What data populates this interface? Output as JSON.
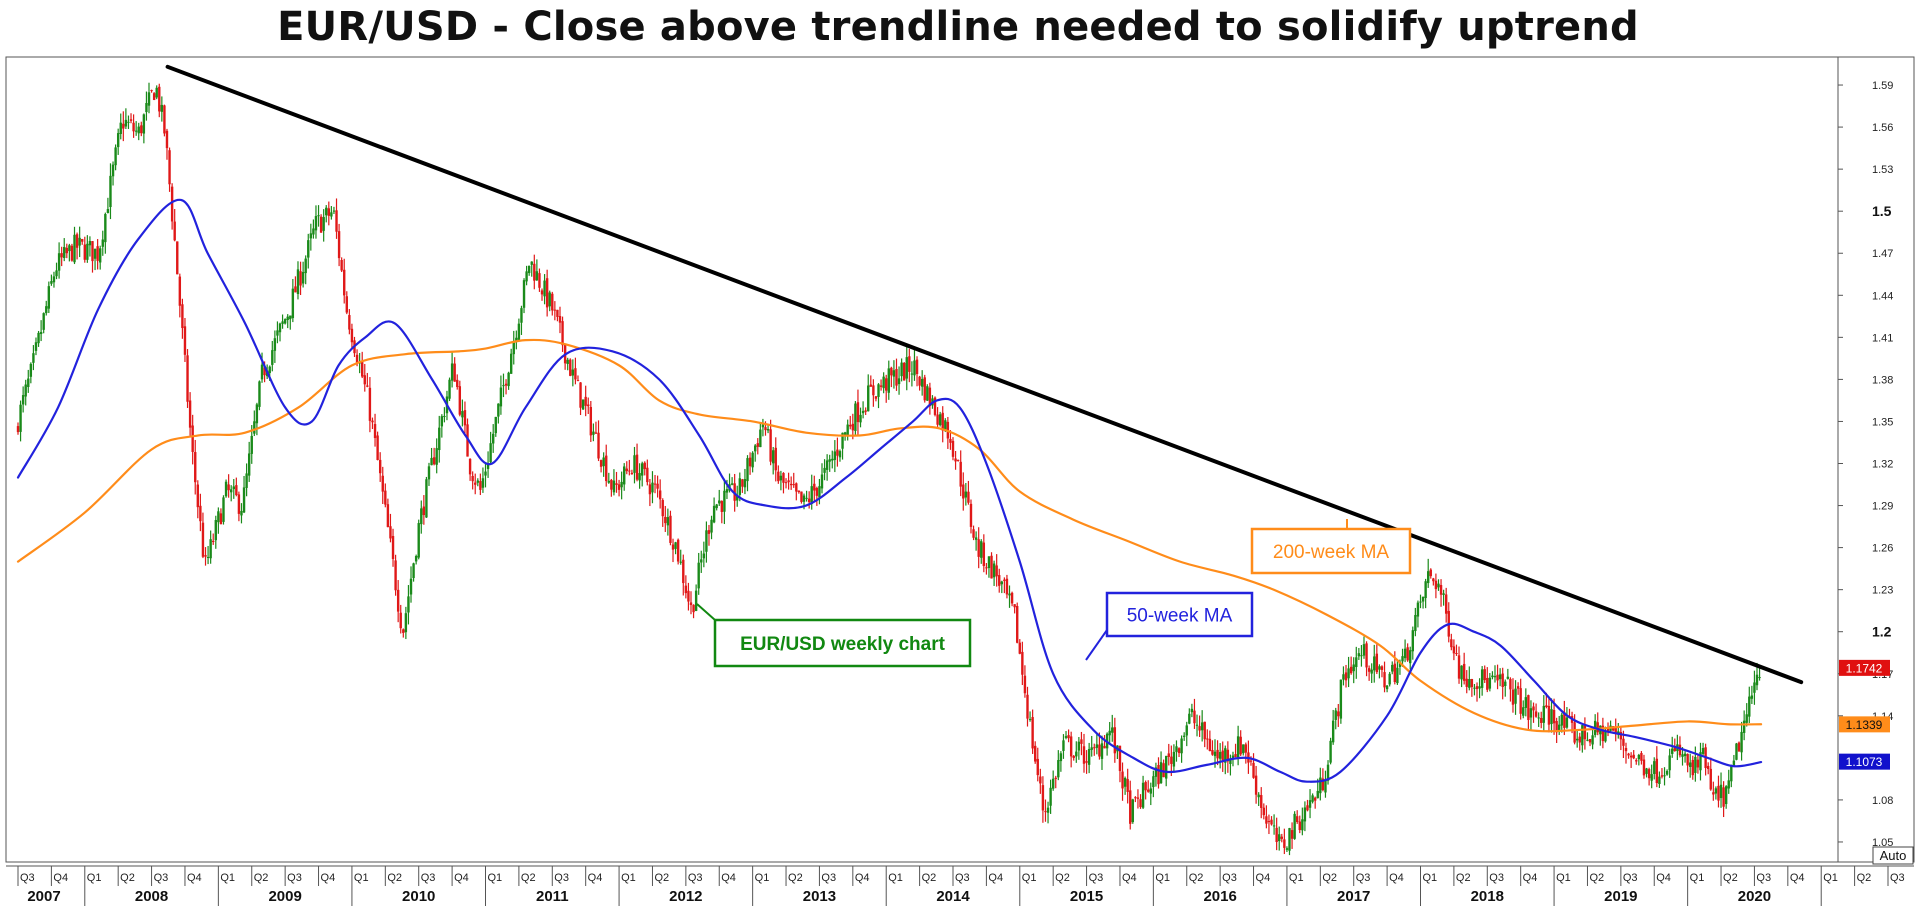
{
  "title": "EUR/USD - Close above trendline needed to solidify uptrend",
  "auto_label": "Auto",
  "chart_data": {
    "type": "candlestick",
    "title": "EUR/USD - Close above trendline needed to solidify uptrend",
    "grid": false,
    "y_axis": {
      "position": "right",
      "ylim": [
        1.03,
        1.61
      ],
      "minor_ticks": [
        "1.59",
        "1.56",
        "1.53",
        "1.47",
        "1.44",
        "1.41",
        "1.38",
        "1.35",
        "1.32",
        "1.29",
        "1.26",
        "1.23",
        "1.17",
        "1.14",
        "1.08",
        "1.05"
      ],
      "major_ticks": [
        "1.5",
        "1.2"
      ]
    },
    "x_axis": {
      "start": 2007.5,
      "end": 2021.5,
      "years": [
        "2007",
        "2008",
        "2009",
        "2010",
        "2011",
        "2012",
        "2013",
        "2014",
        "2015",
        "2016",
        "2017",
        "2018",
        "2019",
        "2020"
      ],
      "quarters": [
        "Q3",
        "Q4",
        "Q1",
        "Q2",
        "Q3",
        "Q4",
        "Q1",
        "Q2",
        "Q3",
        "Q4",
        "Q1",
        "Q2",
        "Q3",
        "Q4",
        "Q1",
        "Q2",
        "Q3",
        "Q4",
        "Q1",
        "Q2",
        "Q3",
        "Q4",
        "Q1",
        "Q2",
        "Q3",
        "Q4",
        "Q1",
        "Q2",
        "Q3",
        "Q4",
        "Q1",
        "Q2",
        "Q3",
        "Q4",
        "Q1",
        "Q2",
        "Q3",
        "Q4",
        "Q1",
        "Q2",
        "Q3",
        "Q4",
        "Q1",
        "Q2",
        "Q3",
        "Q4",
        "Q1",
        "Q2",
        "Q3",
        "Q4",
        "Q1",
        "Q2",
        "Q3",
        "Q4",
        "Q1",
        "Q2",
        "Q3",
        "Q4"
      ]
    },
    "price_keypoints": [
      [
        2007.5,
        1.345
      ],
      [
        2007.62,
        1.385
      ],
      [
        2007.8,
        1.46
      ],
      [
        2007.95,
        1.475
      ],
      [
        2008.12,
        1.47
      ],
      [
        2008.3,
        1.565
      ],
      [
        2008.42,
        1.555
      ],
      [
        2008.55,
        1.59
      ],
      [
        2008.62,
        1.555
      ],
      [
        2008.7,
        1.47
      ],
      [
        2008.82,
        1.33
      ],
      [
        2008.92,
        1.245
      ],
      [
        2009.08,
        1.3
      ],
      [
        2009.2,
        1.29
      ],
      [
        2009.35,
        1.385
      ],
      [
        2009.55,
        1.43
      ],
      [
        2009.75,
        1.49
      ],
      [
        2009.88,
        1.5
      ],
      [
        2009.98,
        1.43
      ],
      [
        2010.15,
        1.36
      ],
      [
        2010.3,
        1.265
      ],
      [
        2010.4,
        1.2
      ],
      [
        2010.52,
        1.275
      ],
      [
        2010.62,
        1.32
      ],
      [
        2010.78,
        1.39
      ],
      [
        2010.9,
        1.32
      ],
      [
        2010.98,
        1.3
      ],
      [
        2011.12,
        1.36
      ],
      [
        2011.3,
        1.44
      ],
      [
        2011.35,
        1.465
      ],
      [
        2011.52,
        1.43
      ],
      [
        2011.68,
        1.38
      ],
      [
        2011.8,
        1.35
      ],
      [
        2011.98,
        1.3
      ],
      [
        2012.12,
        1.32
      ],
      [
        2012.3,
        1.3
      ],
      [
        2012.45,
        1.26
      ],
      [
        2012.56,
        1.215
      ],
      [
        2012.72,
        1.29
      ],
      [
        2012.92,
        1.3
      ],
      [
        2013.1,
        1.35
      ],
      [
        2013.2,
        1.31
      ],
      [
        2013.4,
        1.29
      ],
      [
        2013.55,
        1.31
      ],
      [
        2013.75,
        1.35
      ],
      [
        2013.9,
        1.37
      ],
      [
        2014.05,
        1.38
      ],
      [
        2014.22,
        1.39
      ],
      [
        2014.35,
        1.365
      ],
      [
        2014.5,
        1.34
      ],
      [
        2014.7,
        1.26
      ],
      [
        2014.85,
        1.24
      ],
      [
        2014.98,
        1.21
      ],
      [
        2015.1,
        1.13
      ],
      [
        2015.2,
        1.07
      ],
      [
        2015.35,
        1.12
      ],
      [
        2015.55,
        1.11
      ],
      [
        2015.7,
        1.13
      ],
      [
        2015.85,
        1.07
      ],
      [
        2015.95,
        1.085
      ],
      [
        2016.15,
        1.11
      ],
      [
        2016.3,
        1.14
      ],
      [
        2016.5,
        1.11
      ],
      [
        2016.7,
        1.12
      ],
      [
        2016.85,
        1.07
      ],
      [
        2016.97,
        1.045
      ],
      [
        2017.1,
        1.065
      ],
      [
        2017.28,
        1.09
      ],
      [
        2017.45,
        1.17
      ],
      [
        2017.58,
        1.185
      ],
      [
        2017.75,
        1.165
      ],
      [
        2017.9,
        1.18
      ],
      [
        2018.08,
        1.24
      ],
      [
        2018.15,
        1.235
      ],
      [
        2018.32,
        1.17
      ],
      [
        2018.5,
        1.165
      ],
      [
        2018.68,
        1.16
      ],
      [
        2018.85,
        1.14
      ],
      [
        2019.0,
        1.14
      ],
      [
        2019.2,
        1.125
      ],
      [
        2019.45,
        1.13
      ],
      [
        2019.62,
        1.11
      ],
      [
        2019.78,
        1.1
      ],
      [
        2019.95,
        1.115
      ],
      [
        2020.05,
        1.1
      ],
      [
        2020.15,
        1.11
      ],
      [
        2020.2,
        1.08
      ],
      [
        2020.32,
        1.085
      ],
      [
        2020.4,
        1.12
      ],
      [
        2020.48,
        1.145
      ],
      [
        2020.55,
        1.175
      ]
    ],
    "series": [
      {
        "name": "200-week MA",
        "color": "#FF8C1A",
        "last_value": "1.1339",
        "points": [
          [
            2007.5,
            1.25
          ],
          [
            2008.0,
            1.285
          ],
          [
            2008.5,
            1.33
          ],
          [
            2008.85,
            1.34
          ],
          [
            2009.2,
            1.342
          ],
          [
            2009.6,
            1.36
          ],
          [
            2010.0,
            1.39
          ],
          [
            2010.4,
            1.398
          ],
          [
            2010.8,
            1.4
          ],
          [
            2011.0,
            1.402
          ],
          [
            2011.3,
            1.408
          ],
          [
            2011.6,
            1.405
          ],
          [
            2012.0,
            1.39
          ],
          [
            2012.3,
            1.365
          ],
          [
            2012.6,
            1.355
          ],
          [
            2013.0,
            1.35
          ],
          [
            2013.4,
            1.342
          ],
          [
            2013.8,
            1.34
          ],
          [
            2014.1,
            1.345
          ],
          [
            2014.4,
            1.345
          ],
          [
            2014.7,
            1.33
          ],
          [
            2015.0,
            1.3
          ],
          [
            2015.4,
            1.28
          ],
          [
            2015.8,
            1.265
          ],
          [
            2016.2,
            1.25
          ],
          [
            2016.6,
            1.24
          ],
          [
            2016.9,
            1.23
          ],
          [
            2017.3,
            1.212
          ],
          [
            2017.7,
            1.19
          ],
          [
            2018.0,
            1.165
          ],
          [
            2018.4,
            1.142
          ],
          [
            2018.8,
            1.13
          ],
          [
            2019.2,
            1.13
          ],
          [
            2019.6,
            1.133
          ],
          [
            2020.0,
            1.136
          ],
          [
            2020.3,
            1.134
          ],
          [
            2020.55,
            1.134
          ]
        ]
      },
      {
        "name": "50-week MA",
        "color": "#2222DD",
        "last_value": "1.1073",
        "points": [
          [
            2007.5,
            1.31
          ],
          [
            2007.8,
            1.36
          ],
          [
            2008.1,
            1.43
          ],
          [
            2008.4,
            1.48
          ],
          [
            2008.72,
            1.508
          ],
          [
            2008.92,
            1.47
          ],
          [
            2009.2,
            1.42
          ],
          [
            2009.5,
            1.36
          ],
          [
            2009.7,
            1.35
          ],
          [
            2009.9,
            1.39
          ],
          [
            2010.1,
            1.41
          ],
          [
            2010.32,
            1.42
          ],
          [
            2010.6,
            1.38
          ],
          [
            2010.85,
            1.34
          ],
          [
            2011.05,
            1.32
          ],
          [
            2011.3,
            1.36
          ],
          [
            2011.6,
            1.398
          ],
          [
            2011.95,
            1.4
          ],
          [
            2012.3,
            1.38
          ],
          [
            2012.6,
            1.34
          ],
          [
            2012.85,
            1.3
          ],
          [
            2013.1,
            1.29
          ],
          [
            2013.4,
            1.29
          ],
          [
            2013.7,
            1.31
          ],
          [
            2013.95,
            1.33
          ],
          [
            2014.2,
            1.35
          ],
          [
            2014.38,
            1.365
          ],
          [
            2014.55,
            1.36
          ],
          [
            2014.75,
            1.32
          ],
          [
            2015.0,
            1.25
          ],
          [
            2015.25,
            1.17
          ],
          [
            2015.55,
            1.13
          ],
          [
            2015.85,
            1.11
          ],
          [
            2016.1,
            1.1
          ],
          [
            2016.4,
            1.105
          ],
          [
            2016.7,
            1.11
          ],
          [
            2016.95,
            1.1
          ],
          [
            2017.15,
            1.093
          ],
          [
            2017.4,
            1.1
          ],
          [
            2017.75,
            1.14
          ],
          [
            2018.0,
            1.185
          ],
          [
            2018.2,
            1.205
          ],
          [
            2018.4,
            1.2
          ],
          [
            2018.6,
            1.19
          ],
          [
            2018.85,
            1.165
          ],
          [
            2019.1,
            1.14
          ],
          [
            2019.35,
            1.13
          ],
          [
            2019.6,
            1.125
          ],
          [
            2019.9,
            1.118
          ],
          [
            2020.15,
            1.11
          ],
          [
            2020.35,
            1.104
          ],
          [
            2020.55,
            1.107
          ]
        ]
      },
      {
        "name": "trendline",
        "color": "#000000",
        "points": [
          [
            2008.62,
            1.603
          ],
          [
            2020.85,
            1.164
          ]
        ]
      }
    ],
    "current_price": "1.1742",
    "annotations": [
      {
        "text": "EUR/USD weekly chart",
        "color": "#118811"
      },
      {
        "text": "50-week MA",
        "color": "#2222DD"
      },
      {
        "text": "200-week MA",
        "color": "#FF8C1A"
      }
    ]
  }
}
